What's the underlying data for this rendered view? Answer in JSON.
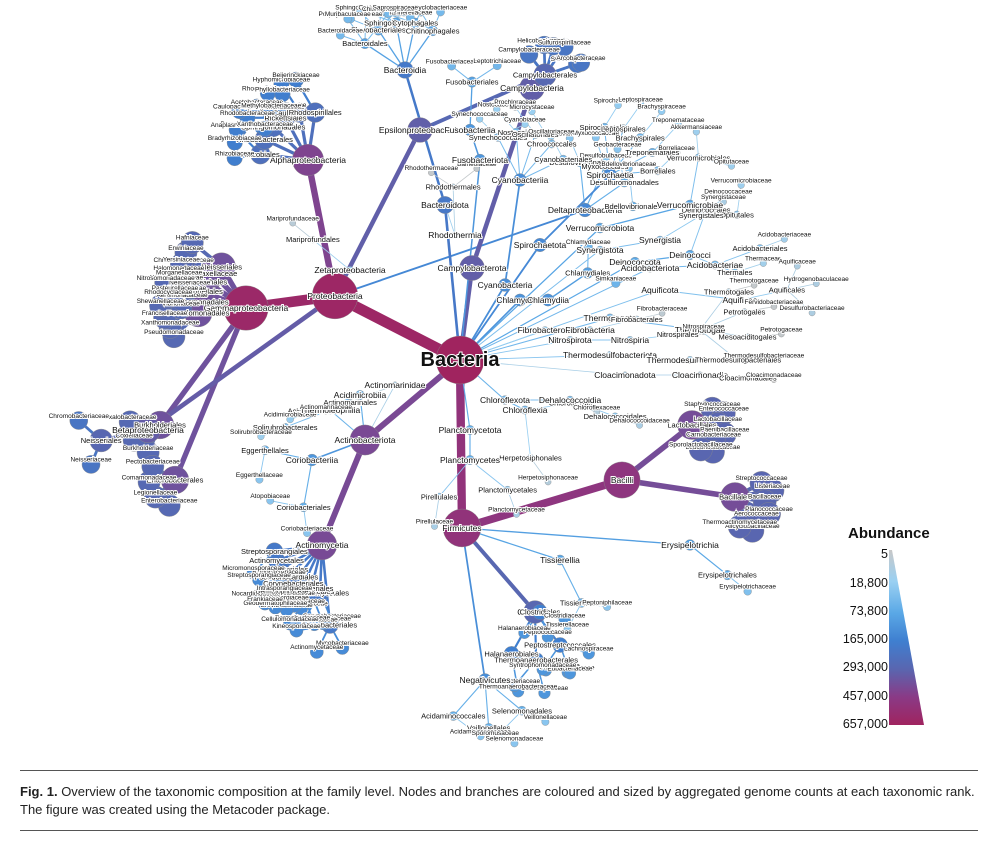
{
  "legend": {
    "title": "Abundance",
    "ticks": [
      "5",
      "18,800",
      "73,800",
      "165,000",
      "293,000",
      "457,000",
      "657,000"
    ],
    "colors": [
      "#c8c8c8",
      "#9ad0f2",
      "#5aa8e6",
      "#3f7fd0",
      "#5966b0",
      "#8a3a86",
      "#a0245f"
    ]
  },
  "caption": {
    "label": "Fig. 1.",
    "text": "Overview of the taxonomic composition at the family level. Nodes and branches are coloured and sized by aggregated genome counts at each taxonomic rank. The figure was created using the Metacoder package."
  },
  "tree": {
    "root": "Bacteria",
    "phyla": [
      {
        "name": "Proteobacteria",
        "abundance": 490000,
        "classes": [
          {
            "name": "Gammaproteobacteria",
            "abundance": 420000,
            "orders": [
              "Enterobacterales",
              "Burkholderiales",
              "Pseudomonadales",
              "Xanthomonadales",
              "Legionellales",
              "Thiotrichales",
              "Moraxellaceae",
              "Neisseriales"
            ],
            "families": [
              "Enterobacteriaceae",
              "Burkholderiaceae",
              "Pseudomonadaceae",
              "Xanthomonadaceae",
              "Vibrionaceae",
              "Aeromonadaceae",
              "Moraxellaceae",
              "Neisseriaceae",
              "Legionellaceae",
              "Coxiellaceae",
              "Francisellaceae",
              "Shewanellaceae",
              "Pasteurellaceae",
              "Alteromonadaceae",
              "Halomonadaceae",
              "Chromobacteriaceae",
              "Comamonadaceae",
              "Oxalobacteraceae",
              "Rhodocyclaceae",
              "Nitrosomonadaceae",
              "Morganellaceae",
              "Yersiniaceae",
              "Erwiniaceae",
              "Hafniaceae",
              "Pectobacteriaceae"
            ]
          },
          {
            "name": "Alphaproteobacteria",
            "abundance": 60000,
            "orders": [
              "Rhizobiales",
              "Rhodobacterales",
              "Sphingomonadales",
              "Rickettsiales",
              "Caulobacterales",
              "Rhodospirillales"
            ],
            "families": [
              "Rhizobiaceae",
              "Bradyrhizobiaceae",
              "Brucellaceae",
              "Rhodobacteraceae",
              "Sphingomonadaceae",
              "Rickettsiaceae",
              "Anaplasmataceae",
              "Caulobacteraceae",
              "Acetobacteraceae",
              "Rhodospirillaceae",
              "Hyphomicrobiaceae",
              "Beijerinckiaceae",
              "Xanthobacteraceae",
              "Methylobacteriaceae",
              "Phyllobacteriaceae"
            ]
          },
          {
            "name": "Betaproteobacteria",
            "abundance": 20000,
            "orders": [
              "Neisseriales"
            ],
            "families": [
              "Neisseriaceae",
              "Chromobacteriaceae"
            ]
          },
          {
            "name": "Zetaproteobacteria",
            "abundance": 50,
            "orders": [
              "Mariprofundales"
            ],
            "families": [
              "Mariprofundaceae"
            ]
          },
          {
            "name": "Epsilonproteobacteria",
            "abundance": 18000,
            "orders": [
              "Campylobacterales"
            ],
            "families": [
              "Campylobacteraceae",
              "Helicobacteraceae",
              "Sulfurospirillaceae"
            ]
          },
          {
            "name": "Deltaproteobacteria",
            "abundance": 1200,
            "orders": [
              "Desulfovibrionales",
              "Myxococcales",
              "Desulfuromonadales",
              "Bdellovibrionales"
            ],
            "families": [
              "Desulfovibrionaceae",
              "Myxococcaceae",
              "Geobacteraceae",
              "Bdellovibrionaceae",
              "Desulfobulbaceae"
            ]
          }
        ]
      },
      {
        "name": "Firmicutes",
        "abundance": 165000,
        "classes": [
          {
            "name": "Bacilli",
            "abundance": 130000,
            "orders": [
              "Lactobacillales",
              "Bacillales"
            ],
            "families": [
              "Staphylococcaceae",
              "Streptococcaceae",
              "Enterococcaceae",
              "Listeriaceae",
              "Lactobacillaceae",
              "Bacillaceae",
              "Paenibacillaceae",
              "Planococcaceae",
              "Carnobacteriaceae",
              "Aerococcaceae",
              "Leuconostocaceae",
              "Alicyclobacillaceae",
              "Sporolactobacillaceae",
              "Thermoactinomycetaceae"
            ]
          },
          {
            "name": "Clostridia",
            "abundance": 12000,
            "orders": [
              "Clostridiales",
              "Peptostreptococcales",
              "Thermoanaerobacterales",
              "Halanaerobiales"
            ],
            "families": [
              "Clostridiaceae",
              "Lachnospiraceae",
              "Ruminococcaceae",
              "Peptostreptococcaceae",
              "Peptococcaceae",
              "Eubacteriaceae",
              "Oscillospiraceae",
              "Thermoanaerobacteraceae",
              "Halanaerobiaceae",
              "Syntrophomonadaceae",
              "Heliobacteriaceae"
            ]
          },
          {
            "name": "Erysipelotrichia",
            "abundance": 400,
            "orders": [
              "Erysipelotrichales"
            ],
            "families": [
              "Erysipelotrichaceae"
            ]
          },
          {
            "name": "Negativicutes",
            "abundance": 900,
            "orders": [
              "Selenomonadales",
              "Veillonellales",
              "Acidaminococcales"
            ],
            "families": [
              "Veillonellaceae",
              "Selenomonadaceae",
              "Acidaminococcaceae",
              "Sporomusaceae"
            ]
          },
          {
            "name": "Tissierellia",
            "abundance": 300,
            "orders": [
              "Tissierellales"
            ],
            "families": [
              "Peptoniphilaceae",
              "Tissierellaceae"
            ]
          }
        ]
      },
      {
        "name": "Actinobacteriota",
        "abundance": 48000,
        "classes": [
          {
            "name": "Actinomycetia",
            "abundance": 45000,
            "orders": [
              "Mycobacteriales",
              "Streptomycetales",
              "Micrococcales",
              "Propionibacteriales",
              "Corynebacteriales",
              "Pseudonocardiales",
              "Bifidobacteriales",
              "Actinomycetales",
              "Streptosporangiales"
            ],
            "families": [
              "Mycobacteriaceae",
              "Corynebacteriaceae",
              "Streptomycetaceae",
              "Micrococcaceae",
              "Microbacteriaceae",
              "Propionibacteriaceae",
              "Nocardiaceae",
              "Pseudonocardiaceae",
              "Bifidobacteriaceae",
              "Actinomycetaceae",
              "Dermabacteraceae",
              "Cellulomonadaceae",
              "Brevibacteriaceae",
              "Geodermatophilaceae",
              "Frankiaceae",
              "Nocardioidaceae",
              "Streptosporangiaceae",
              "Micromonosporaceae",
              "Kineosporiaceae",
              "Dermatophilaceae",
              "Intrasporangiaceae"
            ]
          },
          {
            "name": "Acidimicrobiia",
            "abundance": 200,
            "orders": [
              "Acidimicrobiales"
            ],
            "families": [
              "Acidimicrobiaceae"
            ]
          },
          {
            "name": "Thermoleophilia",
            "abundance": 150,
            "orders": [
              "Solirubrobacterales"
            ],
            "families": [
              "Solirubrobacteraceae"
            ]
          },
          {
            "name": "Coriobacteriia",
            "abundance": 600,
            "orders": [
              "Coriobacteriales",
              "Eggerthellales"
            ],
            "families": [
              "Coriobacteriaceae",
              "Eggerthellaceae",
              "Atopobiaceae"
            ]
          },
          {
            "name": "Actinomarinidae",
            "abundance": 20,
            "orders": [
              "Actinomarinales"
            ],
            "families": [
              "Actinomarinaceae"
            ]
          }
        ]
      },
      {
        "name": "Campylobacterota",
        "abundance": 18800,
        "classes": [
          {
            "name": "Campylobacteria",
            "abundance": 18700,
            "orders": [
              "Campylobacterales"
            ],
            "families": [
              "Campylobacteraceae",
              "Helicobacteraceae",
              "Sulfurospirillaceae",
              "Arcobacteraceae"
            ]
          }
        ]
      },
      {
        "name": "Bacteroidota",
        "abundance": 3200,
        "classes": [
          {
            "name": "Bacteroidia",
            "abundance": 2800,
            "orders": [
              "Bacteroidales",
              "Flavobacteriales",
              "Sphingobacteriales",
              "Cytophagales",
              "Chitinophagales"
            ],
            "families": [
              "Bacteroidaceae",
              "Porphyromonadaceae",
              "Prevotellaceae",
              "Rikenellaceae",
              "Tannerellaceae",
              "Muribaculaceae",
              "Barnesiellaceae",
              "Marinilabiliaceae",
              "Flavobacteriaceae",
              "Weeksellaceae",
              "Sphingobacteriaceae",
              "Cytophagaceae",
              "Hymenobacteraceae",
              "Spirosomaceae",
              "Cyclobacteriaceae",
              "Chitinophagaceae",
              "Saprospiraceae"
            ]
          },
          {
            "name": "Rhodothermia",
            "abundance": 30,
            "orders": [
              "Rhodothermales"
            ],
            "families": [
              "Rhodothermaceae",
              "Balneolaceae"
            ]
          }
        ]
      },
      {
        "name": "Cyanobacteria",
        "abundance": 900,
        "classes": [
          {
            "name": "Cyanobacteriia",
            "abundance": 900,
            "orders": [
              "Synechococcales",
              "Nostocales",
              "Oscillatoriales",
              "Chroococcales",
              "Cyanobacteriales"
            ],
            "families": [
              "Synechococcaceae",
              "Nostocaceae",
              "Prochloraceae",
              "Microcystaceae",
              "Oscillatoriaceae",
              "Cyanobiaceae"
            ]
          }
        ]
      },
      {
        "name": "Spirochaetota",
        "abundance": 1100,
        "classes": [
          {
            "name": "Spirochaetia",
            "abundance": 1100,
            "orders": [
              "Spirochaetales",
              "Leptospirales",
              "Brachyspirales",
              "Treponematales",
              "Borreliales"
            ],
            "families": [
              "Spirochaetaceae",
              "Leptospiraceae",
              "Brachyspiraceae",
              "Treponemataceae",
              "Borreliaceae"
            ]
          }
        ]
      },
      {
        "name": "Chlamydiota",
        "abundance": 700,
        "classes": [
          {
            "name": "Chlamydiia",
            "abundance": 700,
            "orders": [
              "Chlamydiales"
            ],
            "families": [
              "Chlamydiaceae",
              "Simkaniaceae"
            ]
          }
        ]
      },
      {
        "name": "Deinococcota",
        "abundance": 250,
        "classes": [
          {
            "name": "Deinococci",
            "abundance": 250,
            "orders": [
              "Deinococcales",
              "Thermales"
            ],
            "families": [
              "Deinococcaceae",
              "Thermaceae"
            ]
          }
        ]
      },
      {
        "name": "Aquificota",
        "abundance": 80,
        "classes": [
          {
            "name": "Aquificae",
            "abundance": 80,
            "orders": [
              "Aquificales"
            ],
            "families": [
              "Aquificaceae",
              "Hydrogenobaculaceae",
              "Desulfurobacteriaceae"
            ]
          }
        ]
      },
      {
        "name": "Thermotogota",
        "abundance": 120,
        "classes": [
          {
            "name": "Thermotogae",
            "abundance": 120,
            "orders": [
              "Thermotogales",
              "Petrotogales",
              "Mesoaciditogales",
              "Kosmotogales"
            ],
            "families": [
              "Thermotogaceae",
              "Fervidobacteriaceae",
              "Petrotogaceae"
            ]
          }
        ]
      },
      {
        "name": "Chloroflexota",
        "abundance": 150,
        "classes": [
          {
            "name": "Chloroflexia",
            "abundance": 120,
            "orders": [
              "Chloroflexales",
              "Herpetosiphonales"
            ],
            "families": [
              "Chloroflexaceae",
              "Herpetosiphonaceae"
            ]
          },
          {
            "name": "Dehalococcoidia",
            "abundance": 90,
            "orders": [
              "Dehalococcoidales"
            ],
            "families": [
              "Dehalococcoidaceae"
            ]
          }
        ]
      },
      {
        "name": "Planctomycetota",
        "abundance": 200,
        "classes": [
          {
            "name": "Planctomycetes",
            "abundance": 200,
            "orders": [
              "Planctomycetales",
              "Pirellulales"
            ],
            "families": [
              "Planctomycetaceae",
              "Pirellulaceae"
            ]
          }
        ]
      },
      {
        "name": "Verrucomicrobiota",
        "abundance": 300,
        "classes": [
          {
            "name": "Verrucomicrobiae",
            "abundance": 300,
            "orders": [
              "Verrucomicrobiales",
              "Opitutales"
            ],
            "families": [
              "Akkermansiaceae",
              "Verrucomicrobiaceae",
              "Opitutaceae"
            ]
          }
        ]
      },
      {
        "name": "Acidobacteriota",
        "abundance": 120,
        "classes": [
          {
            "name": "Acidobacteriae",
            "abundance": 120,
            "orders": [
              "Acidobacteriales"
            ],
            "families": [
              "Acidobacteriaceae"
            ]
          }
        ]
      },
      {
        "name": "Fusobacteriota",
        "abundance": 600,
        "classes": [
          {
            "name": "Fusobacteriia",
            "abundance": 600,
            "orders": [
              "Fusobacteriales"
            ],
            "families": [
              "Fusobacteriaceae",
              "Leptotrichiaceae"
            ]
          }
        ]
      },
      {
        "name": "Nitrospirota",
        "abundance": 60,
        "classes": [
          {
            "name": "Nitrospiria",
            "abundance": 60,
            "orders": [
              "Nitrospirales"
            ],
            "families": [
              "Nitrospiraceae"
            ]
          }
        ]
      },
      {
        "name": "Synergistota",
        "abundance": 90,
        "classes": [
          {
            "name": "Synergistia",
            "abundance": 90,
            "orders": [
              "Synergistales"
            ],
            "families": [
              "Synergistaceae"
            ]
          }
        ]
      },
      {
        "name": "Thermodesulfobacteriota",
        "abundance": 60,
        "classes": [
          {
            "name": "Thermodesulfobacteria",
            "abundance": 60,
            "orders": [
              "Thermodesulfobacteriales"
            ],
            "families": [
              "Thermodesulfobacteriaceae"
            ]
          }
        ]
      },
      {
        "name": "Fibrobacterota",
        "abundance": 40,
        "classes": [
          {
            "name": "Fibrobacteria",
            "abundance": 40,
            "orders": [
              "Fibrobacterales"
            ],
            "families": [
              "Fibrobacteraceae"
            ]
          }
        ]
      },
      {
        "name": "Cloacimonadota",
        "abundance": 20,
        "classes": [
          {
            "name": "Cloacimonadia",
            "abundance": 20,
            "orders": [
              "Cloacimonadales"
            ],
            "families": [
              "Cloacimonadaceae"
            ]
          }
        ]
      }
    ]
  }
}
